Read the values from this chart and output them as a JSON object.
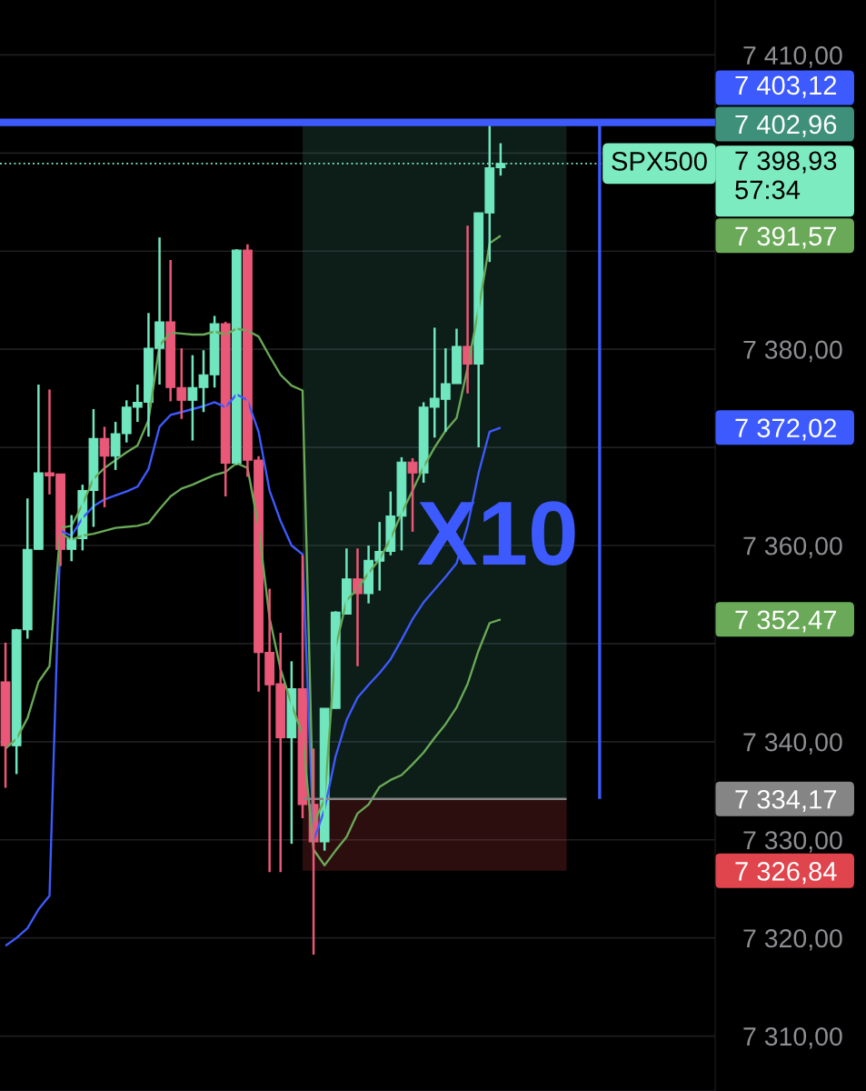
{
  "chart_data": {
    "type": "candlestick",
    "categories": [
      null,
      null,
      null,
      null,
      null,
      null,
      null,
      null,
      null,
      null,
      null,
      null,
      null,
      null,
      null,
      null,
      null,
      null,
      null,
      null,
      null,
      null,
      null,
      null,
      null,
      null,
      null,
      null,
      null,
      null,
      null,
      null,
      null,
      null,
      null,
      null,
      null,
      null,
      null,
      null,
      null,
      null,
      null,
      null,
      null,
      null,
      null,
      null,
      null,
      null,
      null,
      null,
      null,
      null,
      null,
      null,
      null,
      null,
      null,
      null,
      null,
      null,
      null,
      null,
      null
    ],
    "ohlc": [
      [
        7346.1,
        7350.1,
        7335.3,
        7339.6
      ],
      [
        7339.6,
        7351.5,
        7336.7,
        7351.4
      ],
      [
        7351.4,
        7364.8,
        7350.5,
        7359.6
      ],
      [
        7359.6,
        7376.4,
        7359.6,
        7367.4
      ],
      [
        7367.4,
        7375.9,
        7365.2,
        7367.1
      ],
      [
        7367.3,
        7367.3,
        7357.9,
        7359.6
      ],
      [
        7359.6,
        7363.1,
        7358.4,
        7360.7
      ],
      [
        7360.7,
        7366.2,
        7359.5,
        7365.6
      ],
      [
        7365.6,
        7373.9,
        7361.9,
        7370.9
      ],
      [
        7370.9,
        7372.1,
        7363.9,
        7369.1
      ],
      [
        7369.1,
        7372.6,
        7367.7,
        7371.4
      ],
      [
        7371.4,
        7374.8,
        7370.5,
        7374.1
      ],
      [
        7374.1,
        7376.4,
        7372.6,
        7374.6
      ],
      [
        7374.6,
        7383.7,
        7371.1,
        7380.1
      ],
      [
        7380.1,
        7391.4,
        7376.4,
        7382.8
      ],
      [
        7382.8,
        7389.1,
        7374.7,
        7376.1
      ],
      [
        7376.1,
        7380.1,
        7372.9,
        7374.8
      ],
      [
        7374.8,
        7379.4,
        7370.7,
        7376.1
      ],
      [
        7376.1,
        7379.9,
        7373.6,
        7377.4
      ],
      [
        7377.4,
        7383.4,
        7376.1,
        7382.6
      ],
      [
        7382.6,
        7382.8,
        7365.0,
        7368.4
      ],
      [
        7368.4,
        7390.2,
        7368.2,
        7390.1
      ],
      [
        7390.1,
        7390.7,
        7367.0,
        7368.7
      ],
      [
        7368.7,
        7369.1,
        7345.1,
        7349.1
      ],
      [
        7349.1,
        7355.6,
        7326.7,
        7345.8
      ],
      [
        7345.9,
        7351.1,
        7326.7,
        7340.4
      ],
      [
        7340.4,
        7348.2,
        7329.6,
        7345.4
      ],
      [
        7345.4,
        7359.0,
        7332.2,
        7333.6
      ],
      [
        7333.6,
        7339.3,
        7318.3,
        7329.8
      ],
      [
        7329.8,
        7343.4,
        7328.9,
        7343.4
      ],
      [
        7343.4,
        7353.3,
        7343.4,
        7353.2
      ],
      [
        7353.0,
        7359.7,
        7353.0,
        7356.6
      ],
      [
        7356.6,
        7359.7,
        7347.7,
        7355.1
      ],
      [
        7355.1,
        7360.0,
        7354.1,
        7358.5
      ],
      [
        7358.4,
        7362.4,
        7355.4,
        7359.4
      ],
      [
        7359.4,
        7365.5,
        7359.0,
        7363.0
      ],
      [
        7363.0,
        7369.0,
        7359.5,
        7368.5
      ],
      [
        7368.5,
        7368.9,
        7361.4,
        7367.4
      ],
      [
        7367.4,
        7374.6,
        7366.4,
        7374.1
      ],
      [
        7374.1,
        7382.2,
        7371.0,
        7375.0
      ],
      [
        7374.9,
        7380.1,
        7371.6,
        7376.5
      ],
      [
        7376.5,
        7382.1,
        7376.5,
        7380.3
      ],
      [
        7380.3,
        7392.6,
        7375.5,
        7378.5
      ],
      [
        7378.5,
        7393.9,
        7370.0,
        7393.9
      ],
      [
        7393.9,
        7403.0,
        7388.9,
        7398.5
      ],
      [
        7398.5,
        7401.0,
        7397.7,
        7398.93
      ],
      null,
      null,
      null,
      null,
      null,
      null,
      null,
      null,
      null,
      null,
      null,
      null,
      null,
      null,
      null,
      null,
      null,
      null,
      null
    ],
    "colors": [
      "#ea5878",
      "#70e6bf",
      "#70e6bf",
      "#70e6bf",
      "#ea5878",
      "#ea5878",
      "#70e6bf",
      "#70e6bf",
      "#70e6bf",
      "#ea5878",
      "#70e6bf",
      "#70e6bf",
      "#70e6bf",
      "#70e6bf",
      "#70e6bf",
      "#ea5878",
      "#ea5878",
      "#70e6bf",
      "#70e6bf",
      "#70e6bf",
      "#ea5878",
      "#70e6bf",
      "#ea5878",
      "#ea5878",
      "#ea5878",
      "#ea5878",
      "#70e6bf",
      "#ea5878",
      "#ea5878",
      "#70e6bf",
      "#70e6bf",
      "#70e6bf",
      "#ea5878",
      "#70e6bf",
      "#70e6bf",
      "#70e6bf",
      "#70e6bf",
      "#ea5878",
      "#70e6bf",
      "#70e6bf",
      "#70e6bf",
      "#70e6bf",
      "#ea5878",
      "#70e6bf",
      "#70e6bf",
      "#70e6bf",
      null,
      null,
      null,
      null,
      null,
      null,
      null,
      null,
      null,
      null,
      null,
      null,
      null,
      null,
      null,
      null,
      null,
      null,
      null
    ],
    "series": [
      {
        "type": "line",
        "color": "#3d5afe",
        "values": [
          7319.2,
          7320.0,
          7321.0,
          7322.9,
          7324.3,
          7361.5,
          7361.0,
          7362.8,
          7364.0,
          7364.7,
          7365.1,
          7365.5,
          7366.0,
          7367.8,
          7372.1,
          7373.3,
          7373.6,
          7373.9,
          7374.2,
          7374.6,
          7374.1,
          7375.4,
          7374.8,
          7371.6,
          7365.6,
          7362.5,
          7360.0,
          7359.1,
          7329.9,
          7333.1,
          7338.5,
          7342.2,
          7344.5,
          7345.8,
          7347.0,
          7348.4,
          7350.4,
          7352.5,
          7354.2,
          7355.5,
          7356.8,
          7358.2,
          7362.0,
          7367.4,
          7371.6,
          7372.02,
          null,
          null,
          null,
          null,
          null,
          null,
          null,
          null,
          null,
          null,
          null,
          null,
          null,
          null,
          null,
          null,
          null,
          null,
          null
        ]
      },
      {
        "type": "line",
        "color": "#69a957",
        "values": [
          7339.3,
          7340.3,
          7342.4,
          7346.1,
          7347.7,
          7361.8,
          7362.0,
          7364.2,
          7366.8,
          7367.9,
          7368.7,
          7369.5,
          7370.2,
          7372.8,
          7380.4,
          7381.7,
          7381.6,
          7381.5,
          7381.5,
          7381.8,
          7381.5,
          7382.1,
          7381.9,
          7381.3,
          7379.3,
          7377.4,
          7376.3,
          7375.8,
          7331.7,
          7334.1,
          7349.6,
          7354.4,
          7355.6,
          7357.2,
          7358.6,
          7360.7,
          7363.3,
          7365.6,
          7368.0,
          7370.0,
          7371.7,
          7373.0,
          7378.1,
          7384.1,
          7390.8,
          7391.57,
          null,
          null,
          null,
          null,
          null,
          null,
          null,
          null,
          null,
          null,
          null,
          null,
          null,
          null,
          null,
          null,
          null,
          null,
          null
        ]
      },
      {
        "type": "line",
        "color": "#69a957",
        "values": [
          null,
          null,
          null,
          null,
          null,
          7361.2,
          7360.6,
          7361.0,
          7361.2,
          7361.5,
          7361.8,
          7361.9,
          7362.0,
          7362.3,
          7363.7,
          7365.0,
          7365.8,
          7366.2,
          7366.7,
          7367.2,
          7367.5,
          7368.4,
          7367.9,
          7361.9,
          7352.6,
          7347.4,
          7343.8,
          7340.7,
          7329.0,
          7327.4,
          7328.9,
          7330.3,
          7332.7,
          7333.6,
          7335.4,
          7336.1,
          7336.6,
          7337.7,
          7338.9,
          7340.4,
          7341.8,
          7343.5,
          7345.9,
          7349.3,
          7352.1,
          7352.47,
          null,
          null,
          null,
          null,
          null,
          null,
          null,
          null,
          null,
          null,
          null,
          null,
          null,
          null,
          null,
          null,
          null,
          null,
          null
        ]
      },
      {
        "type": "line",
        "color": "#858585",
        "values": [
          null,
          null,
          null,
          null,
          null,
          null,
          null,
          null,
          null,
          null,
          null,
          null,
          null,
          null,
          null,
          null,
          null,
          null,
          null,
          null,
          null,
          null,
          null,
          null,
          null,
          null,
          null,
          7334.17,
          7334.17,
          7334.17,
          7334.17,
          7334.17,
          7334.17,
          7334.17,
          7334.17,
          7334.17,
          7334.17,
          7334.17,
          7334.17,
          7334.17,
          7334.17,
          7334.17,
          7334.17,
          7334.17,
          7334.17,
          7334.17,
          7334.17,
          7334.17,
          7334.17,
          7334.17,
          7334.17,
          7334.17,
          null,
          null,
          null,
          null,
          null,
          null,
          null,
          null,
          null,
          null,
          null,
          null,
          null
        ]
      }
    ],
    "ylim": [
      7304.4,
      7415.6
    ],
    "yticks": [
      {
        "value": 7310,
        "label": "7 310,00"
      },
      {
        "value": 7320,
        "label": "7 320,00"
      },
      {
        "value": 7330,
        "label": "7 330,00"
      },
      {
        "value": 7340,
        "label": "7 340,00"
      },
      {
        "value": 7350,
        "label": null
      },
      {
        "value": 7360,
        "label": "7 360,00"
      },
      {
        "value": 7370,
        "label": null
      },
      {
        "value": 7380,
        "label": "7 380,00"
      },
      {
        "value": 7390,
        "label": null
      },
      {
        "value": 7400,
        "label": null
      },
      {
        "value": 7410,
        "label": "7 410,00"
      }
    ],
    "y2lim": [
      7304.4,
      7415.6
    ],
    "y2ticks": [
      {
        "value": 7326.84,
        "label": "7 326,84"
      },
      {
        "value": 7334.17,
        "label": "7 334,17"
      },
      {
        "value": 7352.47,
        "label": "7 352,47"
      },
      {
        "value": 7372.02,
        "label": "7 372,02"
      },
      {
        "value": 7391.57,
        "label": "7 391,57"
      },
      {
        "value": 7402.96,
        "label": "7 402,96"
      }
    ],
    "grid": "y",
    "tick_labels": "y",
    "bands": [
      {
        "axis": "y",
        "from": 7334.17,
        "to": 7402.96,
        "color": "#3f907a"
      },
      {
        "axis": "y",
        "from": 7326.84,
        "to": 7334.17,
        "color": "#e0444c"
      }
    ],
    "ref_lines": [
      {
        "axis": "y",
        "value": 7403.12,
        "label": "7 403,12",
        "color": "#3d5afe"
      },
      {
        "axis": "y",
        "value": 7398.93,
        "label": "7 398,93\n57:34",
        "color": "#7debc0",
        "line_style": "dotted"
      }
    ],
    "annotations": [
      "X10",
      {
        "text": "SPX500",
        "y": 7398.93
      }
    ]
  }
}
